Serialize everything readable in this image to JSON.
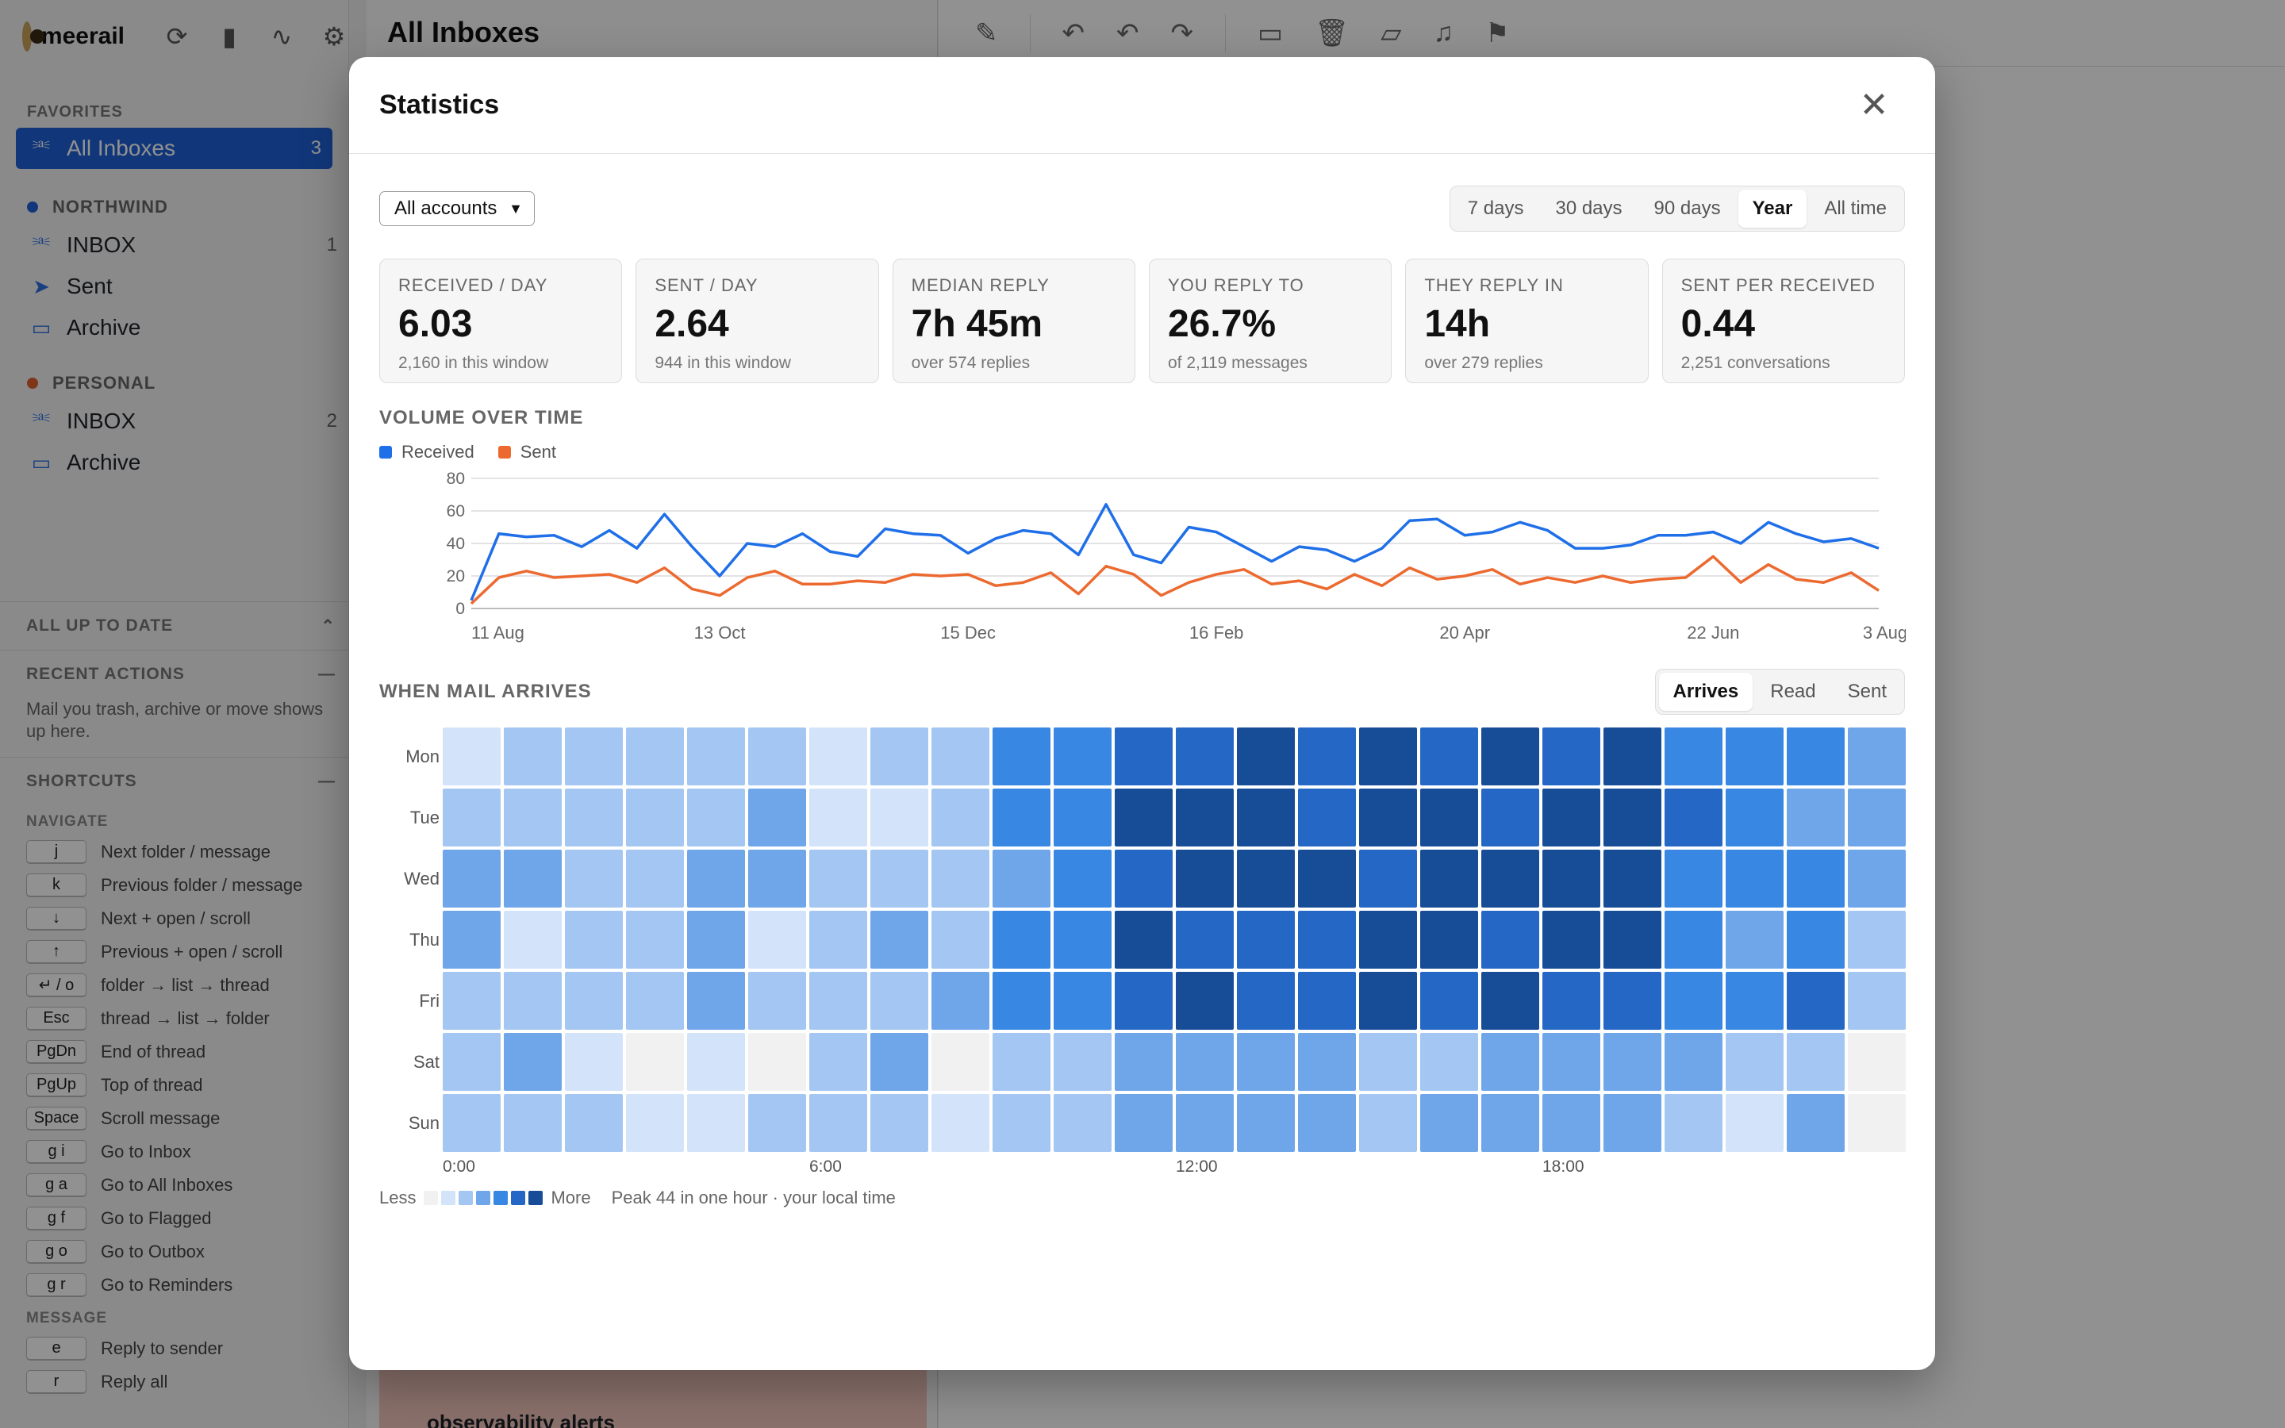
{
  "app": {
    "brand": "meerail",
    "favorites_title": "FAVORITES",
    "all_inboxes": {
      "label": "All Inboxes",
      "count": "3"
    },
    "accounts": [
      {
        "name": "NORTHWIND",
        "color": "#1f62d6",
        "folders": [
          {
            "label": "INBOX",
            "count": "1",
            "icon": "inbox-icon"
          },
          {
            "label": "Sent",
            "count": "",
            "icon": "send-icon"
          },
          {
            "label": "Archive",
            "count": "",
            "icon": "archive-icon"
          }
        ]
      },
      {
        "name": "PERSONAL",
        "color": "#e0612c",
        "folders": [
          {
            "label": "INBOX",
            "count": "2",
            "icon": "inbox-icon"
          },
          {
            "label": "Archive",
            "count": "",
            "icon": "archive-icon"
          }
        ]
      }
    ],
    "status_panel": "ALL UP TO DATE",
    "recent_actions": {
      "title": "RECENT ACTIONS",
      "body": "Mail you trash, archive or move shows up here."
    },
    "shortcuts": {
      "title": "SHORTCUTS",
      "navigate_title": "NAVIGATE",
      "navigate": [
        {
          "key": "j",
          "desc": "Next folder / message"
        },
        {
          "key": "k",
          "desc": "Previous folder / message"
        },
        {
          "key": "↓",
          "desc": "Next + open / scroll"
        },
        {
          "key": "↑",
          "desc": "Previous + open / scroll"
        },
        {
          "key": "↵ / o",
          "desc": "folder → list → thread"
        },
        {
          "key": "Esc",
          "desc": "thread → list → folder"
        },
        {
          "key": "PgDn",
          "desc": "End of thread"
        },
        {
          "key": "PgUp",
          "desc": "Top of thread"
        },
        {
          "key": "Space",
          "desc": "Scroll message"
        },
        {
          "key": "g i",
          "desc": "Go to Inbox"
        },
        {
          "key": "g a",
          "desc": "Go to All Inboxes"
        },
        {
          "key": "g f",
          "desc": "Go to Flagged"
        },
        {
          "key": "g o",
          "desc": "Go to Outbox"
        },
        {
          "key": "g r",
          "desc": "Go to Reminders"
        }
      ],
      "message_title": "MESSAGE",
      "message": [
        {
          "key": "e",
          "desc": "Reply to sender"
        },
        {
          "key": "r",
          "desc": "Reply all"
        }
      ]
    },
    "list_title": "All Inboxes",
    "list_snippet": "observability alerts"
  },
  "modal": {
    "title": "Statistics",
    "account_filter": "All accounts",
    "ranges": [
      "7 days",
      "30 days",
      "90 days",
      "Year",
      "All time"
    ],
    "active_range": "Year",
    "kpis": [
      {
        "label": "RECEIVED / DAY",
        "value": "6.03",
        "sub": "2,160 in this window"
      },
      {
        "label": "SENT / DAY",
        "value": "2.64",
        "sub": "944 in this window"
      },
      {
        "label": "MEDIAN REPLY",
        "value": "7h 45m",
        "sub": "over 574 replies"
      },
      {
        "label": "YOU REPLY TO",
        "value": "26.7%",
        "sub": "of 2,119 messages"
      },
      {
        "label": "THEY REPLY IN",
        "value": "14h",
        "sub": "over 279 replies"
      },
      {
        "label": "SENT PER RECEIVED",
        "value": "0.44",
        "sub": "2,251 conversations"
      }
    ],
    "volume_title": "VOLUME OVER TIME",
    "heat_title": "WHEN MAIL ARRIVES",
    "heat_modes": [
      "Arrives",
      "Read",
      "Sent"
    ],
    "active_mode": "Arrives",
    "legend_less": "Less",
    "legend_more": "More",
    "peak_note": "Peak 44 in one hour · your local time"
  },
  "colors": {
    "received": "#1f6fe8",
    "sent": "#ec6a30",
    "accent": "#1f62d6",
    "heat": [
      "#f1f1f2",
      "#d3e3f9",
      "#a4c6f2",
      "#6fa6ea",
      "#3887e3",
      "#2567c4",
      "#174d96"
    ]
  },
  "chart_data": [
    {
      "type": "line",
      "title": "VOLUME OVER TIME",
      "ylim": [
        0,
        80
      ],
      "yticks": [
        0,
        20,
        40,
        60,
        80
      ],
      "x_tick_labels": [
        "11 Aug",
        "13 Oct",
        "15 Dec",
        "16 Feb",
        "20 Apr",
        "22 Jun",
        "3 Aug"
      ],
      "x_tick_index": [
        0,
        9,
        18,
        27,
        36,
        45,
        51
      ],
      "grid": true,
      "legend": "top-left",
      "series": [
        {
          "name": "Received",
          "values": [
            5,
            46,
            44,
            45,
            38,
            48,
            37,
            58,
            38,
            20,
            40,
            38,
            46,
            35,
            32,
            49,
            46,
            45,
            34,
            43,
            48,
            46,
            33,
            64,
            33,
            28,
            50,
            47,
            38,
            29,
            38,
            36,
            29,
            37,
            54,
            55,
            45,
            47,
            53,
            48,
            37,
            37,
            39,
            45,
            45,
            47,
            40,
            53,
            46,
            41,
            43,
            37
          ]
        },
        {
          "name": "Sent",
          "values": [
            3,
            19,
            23,
            19,
            20,
            21,
            16,
            25,
            12,
            8,
            19,
            23,
            15,
            15,
            17,
            16,
            21,
            20,
            21,
            14,
            16,
            22,
            9,
            26,
            21,
            8,
            16,
            21,
            24,
            15,
            17,
            12,
            21,
            14,
            25,
            18,
            20,
            24,
            15,
            19,
            16,
            20,
            16,
            18,
            19,
            32,
            16,
            27,
            18,
            16,
            22,
            11
          ]
        }
      ]
    },
    {
      "type": "heatmap",
      "title": "WHEN MAIL ARRIVES",
      "rows": [
        "Mon",
        "Tue",
        "Wed",
        "Thu",
        "Fri",
        "Sat",
        "Sun"
      ],
      "x_tick_labels": [
        "0:00",
        "6:00",
        "12:00",
        "18:00"
      ],
      "x_tick_hours": [
        0,
        6,
        12,
        18
      ],
      "scale_levels": 7,
      "levels": [
        [
          1,
          2,
          2,
          2,
          2,
          2,
          1,
          2,
          2,
          4,
          4,
          5,
          5,
          6,
          5,
          6,
          5,
          6,
          5,
          6,
          4,
          4,
          4,
          3
        ],
        [
          2,
          2,
          2,
          2,
          2,
          3,
          1,
          1,
          2,
          4,
          4,
          6,
          6,
          6,
          5,
          6,
          6,
          5,
          6,
          6,
          5,
          4,
          3,
          3
        ],
        [
          3,
          3,
          2,
          2,
          3,
          3,
          2,
          2,
          2,
          3,
          4,
          5,
          6,
          6,
          6,
          5,
          6,
          6,
          6,
          6,
          4,
          4,
          4,
          3
        ],
        [
          3,
          1,
          2,
          2,
          3,
          1,
          2,
          3,
          2,
          4,
          4,
          6,
          5,
          5,
          5,
          6,
          6,
          5,
          6,
          6,
          4,
          3,
          4,
          2
        ],
        [
          2,
          2,
          2,
          2,
          3,
          2,
          2,
          2,
          3,
          4,
          4,
          5,
          6,
          5,
          5,
          6,
          5,
          6,
          5,
          5,
          4,
          4,
          5,
          2
        ],
        [
          2,
          3,
          1,
          0,
          1,
          0,
          2,
          3,
          0,
          2,
          2,
          3,
          3,
          3,
          3,
          2,
          2,
          3,
          3,
          3,
          3,
          2,
          2,
          0
        ],
        [
          2,
          2,
          2,
          1,
          1,
          2,
          2,
          2,
          1,
          2,
          2,
          3,
          3,
          3,
          3,
          2,
          3,
          3,
          3,
          3,
          2,
          1,
          3,
          0
        ]
      ]
    }
  ]
}
